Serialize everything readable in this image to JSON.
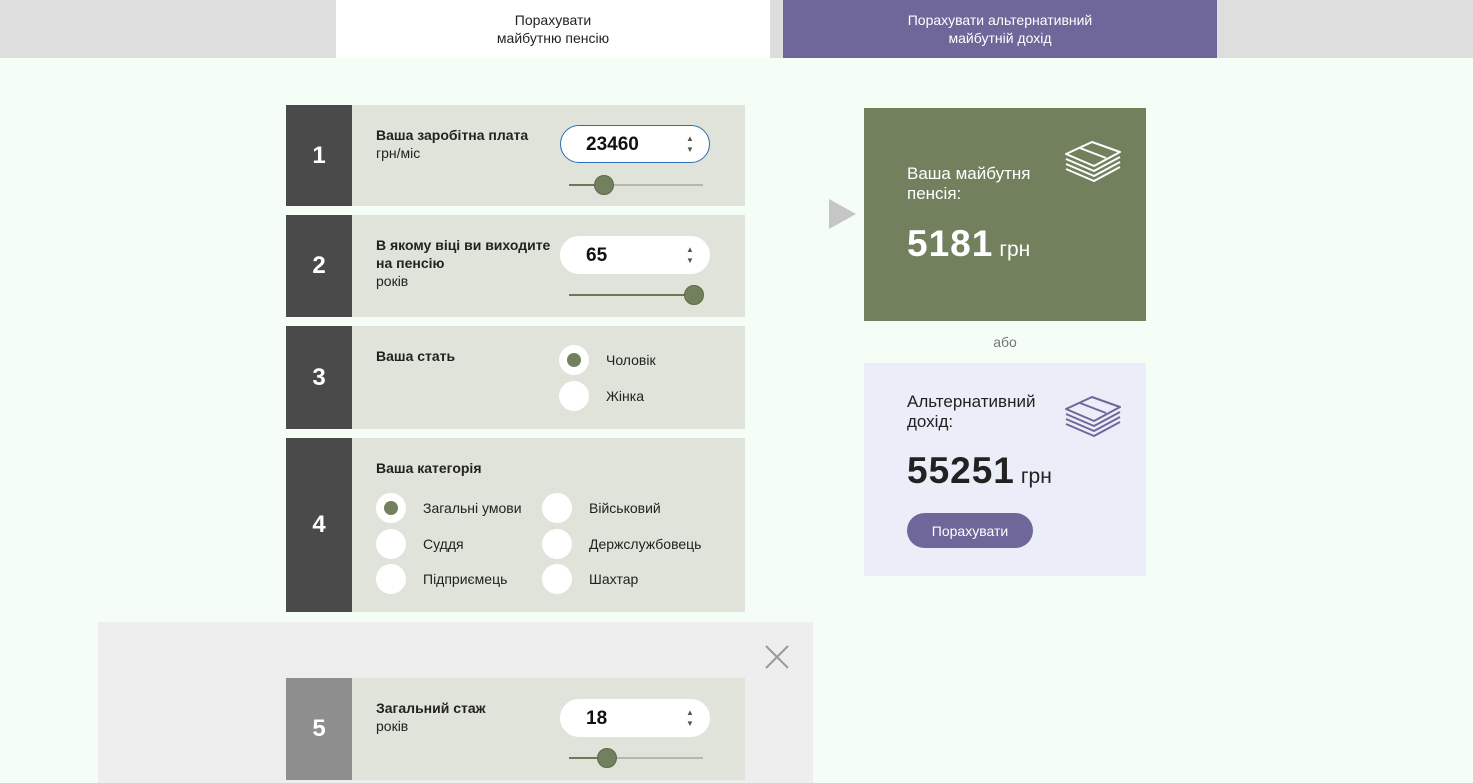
{
  "tabs": [
    {
      "label": "Порахувати\nмайбутню пенсію",
      "active": true
    },
    {
      "label": "Порахувати альтернативний\nмайбутній дохід",
      "active": false
    }
  ],
  "steps": {
    "salary": {
      "number": "1",
      "title": "Ваша заробітна плата",
      "unit": "грн/міс",
      "value": "23460",
      "slider_fraction": 0.26
    },
    "retirement_age": {
      "number": "2",
      "title": "В якому віці ви виходите на пенсію",
      "unit": "років",
      "value": "65",
      "slider_fraction": 0.93
    },
    "gender": {
      "number": "3",
      "title": "Ваша стать",
      "options": [
        "Чоловік",
        "Жінка"
      ],
      "selected": "Чоловік"
    },
    "category": {
      "number": "4",
      "title": "Ваша категорія",
      "options": [
        "Загальні умови",
        "Військовий",
        "Суддя",
        "Держслужбовець",
        "Підприємець",
        "Шахтар"
      ],
      "selected": "Загальні умови"
    },
    "experience": {
      "number": "5",
      "title": "Загальний стаж",
      "unit": "років",
      "value": "18",
      "slider_fraction": 0.28
    }
  },
  "results": {
    "pension": {
      "title": "Ваша майбутня\nпенсія:",
      "amount": "5181",
      "currency": "грн"
    },
    "separator": "або",
    "alternative": {
      "title": "Альтернативний\nдохід:",
      "amount": "55251",
      "currency": "грн",
      "button_label": "Порахувати"
    }
  },
  "colors": {
    "accent_green": "#72805d",
    "accent_purple": "#6f6699",
    "step_bg": "#dfe3d9",
    "number_bg": "#4a4a4a"
  },
  "icons": {
    "money": "money-stack-icon",
    "close": "close-icon",
    "arrow": "arrow-right-icon"
  }
}
